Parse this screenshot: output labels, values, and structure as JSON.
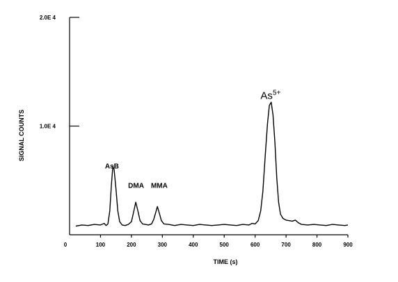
{
  "chart_data": {
    "type": "line",
    "title": "",
    "xlabel": "TIME (s)",
    "ylabel": "SIGNAL COUNTS",
    "xlim": [
      0,
      900
    ],
    "ylim": [
      0,
      20000
    ],
    "grid": false,
    "x_ticks": [
      0,
      100,
      200,
      300,
      400,
      500,
      600,
      700,
      800,
      900
    ],
    "y_ticks": [
      {
        "value": 10000,
        "label": "1.0E 4"
      },
      {
        "value": 20000,
        "label": "2.0E 4"
      }
    ],
    "annotations": [
      {
        "text": "AsB",
        "x": 137,
        "y": 6100
      },
      {
        "text": "DMA",
        "x": 215,
        "y": 4300
      },
      {
        "text": "MMA",
        "x": 290,
        "y": 4300
      },
      {
        "text": "As5+",
        "base": "As",
        "sup": "5+",
        "x": 650,
        "y": 12500
      }
    ],
    "series": [
      {
        "points": [
          [
            20,
            800
          ],
          [
            40,
            900
          ],
          [
            60,
            850
          ],
          [
            80,
            950
          ],
          [
            100,
            900
          ],
          [
            112,
            1050
          ],
          [
            118,
            850
          ],
          [
            124,
            1000
          ],
          [
            130,
            2200
          ],
          [
            135,
            4500
          ],
          [
            140,
            6300
          ],
          [
            144,
            6000
          ],
          [
            150,
            4200
          ],
          [
            156,
            2200
          ],
          [
            162,
            1200
          ],
          [
            170,
            900
          ],
          [
            180,
            850
          ],
          [
            190,
            950
          ],
          [
            200,
            1200
          ],
          [
            208,
            2200
          ],
          [
            214,
            3000
          ],
          [
            220,
            2300
          ],
          [
            228,
            1300
          ],
          [
            236,
            1000
          ],
          [
            245,
            950
          ],
          [
            255,
            900
          ],
          [
            265,
            1000
          ],
          [
            272,
            1400
          ],
          [
            278,
            2000
          ],
          [
            284,
            2600
          ],
          [
            290,
            2000
          ],
          [
            297,
            1300
          ],
          [
            305,
            1000
          ],
          [
            320,
            950
          ],
          [
            340,
            850
          ],
          [
            360,
            950
          ],
          [
            380,
            900
          ],
          [
            400,
            850
          ],
          [
            420,
            950
          ],
          [
            440,
            900
          ],
          [
            460,
            850
          ],
          [
            480,
            900
          ],
          [
            500,
            950
          ],
          [
            520,
            900
          ],
          [
            540,
            850
          ],
          [
            560,
            950
          ],
          [
            580,
            900
          ],
          [
            590,
            1050
          ],
          [
            600,
            1000
          ],
          [
            610,
            1300
          ],
          [
            618,
            2200
          ],
          [
            625,
            4000
          ],
          [
            632,
            7000
          ],
          [
            640,
            10200
          ],
          [
            646,
            11900
          ],
          [
            652,
            12200
          ],
          [
            658,
            11000
          ],
          [
            664,
            8500
          ],
          [
            670,
            5200
          ],
          [
            676,
            3000
          ],
          [
            682,
            1900
          ],
          [
            690,
            1500
          ],
          [
            700,
            1350
          ],
          [
            710,
            1300
          ],
          [
            720,
            1250
          ],
          [
            730,
            1350
          ],
          [
            740,
            1100
          ],
          [
            750,
            950
          ],
          [
            770,
            900
          ],
          [
            790,
            950
          ],
          [
            810,
            900
          ],
          [
            830,
            850
          ],
          [
            850,
            950
          ],
          [
            870,
            900
          ],
          [
            890,
            850
          ],
          [
            900,
            900
          ]
        ]
      }
    ]
  }
}
